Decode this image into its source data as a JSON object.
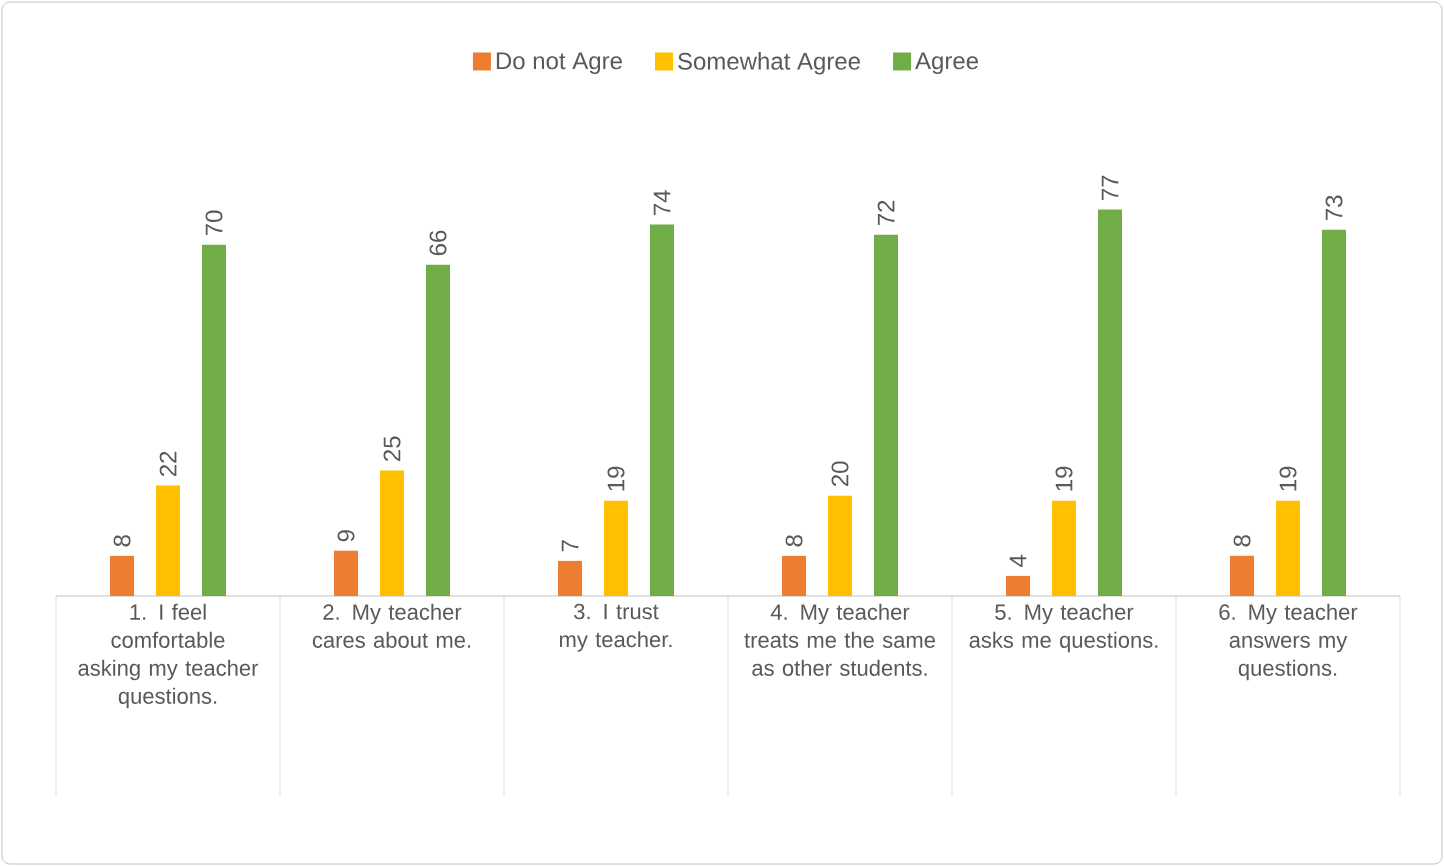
{
  "chart_data": {
    "type": "bar",
    "categories": [
      "1. I feel comfortable asking my teacher questions.",
      "2. My teacher cares about me.",
      "3. I trust my teacher.",
      "4. My teacher treats me the same as other students.",
      "5. My teacher asks me questions.",
      "6. My teacher answers my questions."
    ],
    "series": [
      {
        "name": "Do not Agre",
        "color": "#ed7d31",
        "values": [
          8,
          9,
          7,
          8,
          4,
          8
        ]
      },
      {
        "name": "Somewhat Agree",
        "color": "#ffc000",
        "values": [
          22,
          25,
          19,
          20,
          19,
          19
        ]
      },
      {
        "name": "Agree",
        "color": "#70ad47",
        "values": [
          70,
          66,
          74,
          72,
          77,
          73
        ]
      }
    ],
    "data_labels": true,
    "legend": "top"
  }
}
